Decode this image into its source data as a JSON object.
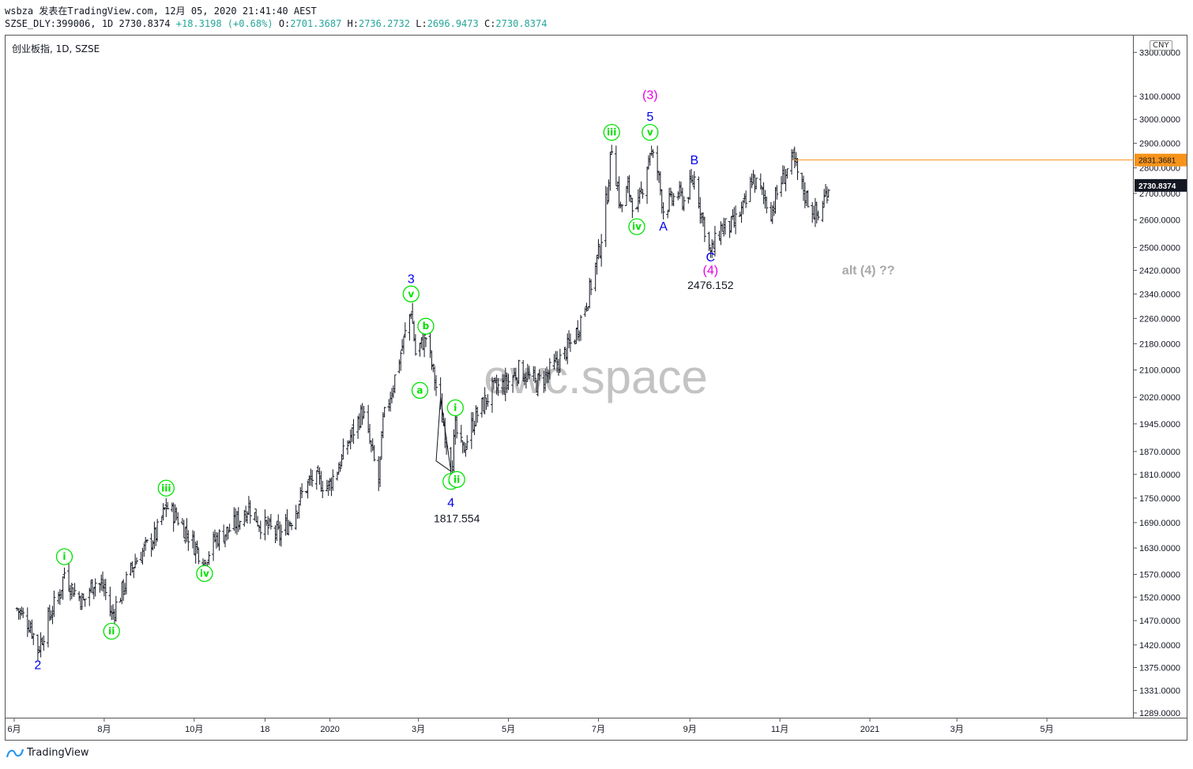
{
  "header": {
    "line1": "wsbza 发表在TradingView.com, 12月 05, 2020 21:41:40 AEST",
    "ticker": "SZSE_DLY:399006, 1D 2730.8374",
    "change": "+18.3198 (+0.68%)",
    "o_label": "O:",
    "o": "2701.3687",
    "h_label": "H:",
    "h": "2736.2732",
    "l_label": "L:",
    "l": "2696.9473",
    "c_label": "C:",
    "c": "2730.8374"
  },
  "symbol_label": "创业板指, 1D, SZSE",
  "currency": "CNY",
  "footer": {
    "brand": "TradingView"
  },
  "watermark": "ewc.space",
  "colors": {
    "up": "#131722",
    "line": "#131722",
    "orange": "#f7931a",
    "green": "#00e200",
    "blue": "#0000ee",
    "magenta": "#e600e6",
    "grey": "#a8a8a8",
    "price_bg": "#131722"
  },
  "chart_data": {
    "type": "bar",
    "title": "创业板指, 1D, SZSE",
    "y_scale": "log",
    "ylim": [
      1270,
      3380
    ],
    "y_ticks": [
      1289,
      1331,
      1375,
      1420,
      1470,
      1520,
      1570,
      1630,
      1690,
      1750,
      1810,
      1870,
      1945,
      2020,
      2100,
      2180,
      2260,
      2340,
      2420,
      2500,
      2600,
      2700,
      2800,
      2900,
      3000,
      3100,
      3300
    ],
    "y_tick_labels": [
      "1289.0000",
      "1331.0000",
      "1375.0000",
      "1420.0000",
      "1470.0000",
      "1520.0000",
      "1570.0000",
      "1630.0000",
      "1690.0000",
      "1750.0000",
      "1810.0000",
      "1870.0000",
      "1945.0000",
      "2020.0000",
      "2100.0000",
      "2180.0000",
      "2260.0000",
      "2340.0000",
      "2420.0000",
      "2500.0000",
      "2600.0000",
      "2700.0000",
      "2800.0000",
      "2900.0000",
      "3000.0000",
      "3100.0000",
      "3300.0000"
    ],
    "x_ticks": [
      {
        "label": "6月",
        "date": "2019-06-01"
      },
      {
        "label": "8月",
        "date": "2019-08-01"
      },
      {
        "label": "10月",
        "date": "2019-10-01"
      },
      {
        "label": "18",
        "date": "2019-11-18"
      },
      {
        "label": "2020",
        "date": "2020-01-01"
      },
      {
        "label": "3月",
        "date": "2020-03-01"
      },
      {
        "label": "5月",
        "date": "2020-05-01"
      },
      {
        "label": "7月",
        "date": "2020-07-01"
      },
      {
        "label": "9月",
        "date": "2020-09-01"
      },
      {
        "label": "11月",
        "date": "2020-11-01"
      },
      {
        "label": "2021",
        "date": "2021-01-01"
      },
      {
        "label": "3月",
        "date": "2021-03-01"
      },
      {
        "label": "5月",
        "date": "2021-05-01"
      }
    ],
    "price_path": [
      [
        "2019-06-03",
        1495
      ],
      [
        "2019-06-12",
        1460
      ],
      [
        "2019-06-17",
        1410
      ],
      [
        "2019-06-25",
        1480
      ],
      [
        "2019-07-02",
        1530
      ],
      [
        "2019-07-05",
        1575
      ],
      [
        "2019-07-10",
        1540
      ],
      [
        "2019-07-18",
        1510
      ],
      [
        "2019-07-25",
        1555
      ],
      [
        "2019-08-01",
        1540
      ],
      [
        "2019-08-06",
        1480
      ],
      [
        "2019-08-12",
        1525
      ],
      [
        "2019-08-22",
        1600
      ],
      [
        "2019-09-05",
        1660
      ],
      [
        "2019-09-12",
        1730
      ],
      [
        "2019-09-20",
        1700
      ],
      [
        "2019-09-27",
        1660
      ],
      [
        "2019-10-08",
        1600
      ],
      [
        "2019-10-15",
        1650
      ],
      [
        "2019-10-24",
        1670
      ],
      [
        "2019-11-01",
        1700
      ],
      [
        "2019-11-07",
        1730
      ],
      [
        "2019-11-14",
        1690
      ],
      [
        "2019-11-28",
        1660
      ],
      [
        "2019-12-06",
        1700
      ],
      [
        "2019-12-13",
        1760
      ],
      [
        "2019-12-20",
        1800
      ],
      [
        "2019-12-31",
        1780
      ],
      [
        "2020-01-08",
        1840
      ],
      [
        "2020-01-14",
        1900
      ],
      [
        "2020-01-23",
        1980
      ],
      [
        "2020-02-03",
        1790
      ],
      [
        "2020-02-06",
        1950
      ],
      [
        "2020-02-13",
        2060
      ],
      [
        "2020-02-19",
        2170
      ],
      [
        "2020-02-25",
        2290
      ],
      [
        "2020-02-28",
        2150
      ],
      [
        "2020-03-06",
        2200
      ],
      [
        "2020-03-13",
        2050
      ],
      [
        "2020-03-20",
        1900
      ],
      [
        "2020-03-23",
        1818
      ],
      [
        "2020-03-26",
        1930
      ],
      [
        "2020-03-31",
        1870
      ],
      [
        "2020-04-08",
        1960
      ],
      [
        "2020-04-20",
        2040
      ],
      [
        "2020-04-30",
        2060
      ],
      [
        "2020-05-08",
        2100
      ],
      [
        "2020-05-20",
        2060
      ],
      [
        "2020-05-28",
        2090
      ],
      [
        "2020-06-05",
        2130
      ],
      [
        "2020-06-15",
        2200
      ],
      [
        "2020-06-24",
        2330
      ],
      [
        "2020-07-02",
        2500
      ],
      [
        "2020-07-07",
        2700
      ],
      [
        "2020-07-10",
        2890
      ],
      [
        "2020-07-16",
        2640
      ],
      [
        "2020-07-21",
        2720
      ],
      [
        "2020-07-27",
        2620
      ],
      [
        "2020-08-05",
        2870
      ],
      [
        "2020-08-10",
        2790
      ],
      [
        "2020-08-14",
        2640
      ],
      [
        "2020-08-24",
        2700
      ],
      [
        "2020-08-28",
        2670
      ],
      [
        "2020-09-04",
        2760
      ],
      [
        "2020-09-09",
        2620
      ],
      [
        "2020-09-15",
        2476
      ],
      [
        "2020-09-22",
        2570
      ],
      [
        "2020-09-30",
        2580
      ],
      [
        "2020-10-09",
        2660
      ],
      [
        "2020-10-13",
        2760
      ],
      [
        "2020-10-20",
        2700
      ],
      [
        "2020-10-26",
        2630
      ],
      [
        "2020-11-02",
        2750
      ],
      [
        "2020-11-10",
        2831
      ],
      [
        "2020-11-16",
        2720
      ],
      [
        "2020-11-23",
        2640
      ],
      [
        "2020-11-27",
        2610
      ],
      [
        "2020-12-04",
        2730
      ]
    ],
    "resistance_level": 2831.3681,
    "last_price": 2730.8374,
    "price_labels": {
      "resistance": "2831.3681",
      "last": "2730.8374"
    },
    "annotations": [
      {
        "text": "2",
        "date": "2019-06-17",
        "price": 1380,
        "style": "blue"
      },
      {
        "text": "i",
        "date": "2019-07-05",
        "price": 1610,
        "style": "green-circle"
      },
      {
        "text": "ii",
        "date": "2019-08-06",
        "price": 1448,
        "style": "green-circle"
      },
      {
        "text": "iii",
        "date": "2019-09-12",
        "price": 1775,
        "style": "green-circle"
      },
      {
        "text": "iv",
        "date": "2019-10-08",
        "price": 1572,
        "style": "green-circle"
      },
      {
        "text": "3",
        "date": "2020-02-25",
        "price": 2390,
        "style": "blue"
      },
      {
        "text": "v",
        "date": "2020-02-25",
        "price": 2340,
        "style": "green-circle"
      },
      {
        "text": "b",
        "date": "2020-03-06",
        "price": 2235,
        "style": "green-circle"
      },
      {
        "text": "a",
        "date": "2020-03-02",
        "price": 2040,
        "style": "green-circle"
      },
      {
        "text": "i",
        "date": "2020-03-26",
        "price": 1990,
        "style": "green-circle"
      },
      {
        "text": "c",
        "date": "2020-03-23",
        "price": 1792,
        "style": "green-circle"
      },
      {
        "text": "ii",
        "date": "2020-03-27",
        "price": 1797,
        "style": "green-circle"
      },
      {
        "text": "4",
        "date": "2020-03-23",
        "price": 1738,
        "style": "blue"
      },
      {
        "text": "1817.554",
        "date": "2020-03-27",
        "price": 1700,
        "style": "dark"
      },
      {
        "text": "(3)",
        "date": "2020-08-05",
        "price": 3105,
        "style": "magenta"
      },
      {
        "text": "5",
        "date": "2020-08-05",
        "price": 3010,
        "style": "blue"
      },
      {
        "text": "iii",
        "date": "2020-07-10",
        "price": 2945,
        "style": "green-circle"
      },
      {
        "text": "v",
        "date": "2020-08-05",
        "price": 2945,
        "style": "green-circle"
      },
      {
        "text": "iv",
        "date": "2020-07-27",
        "price": 2575,
        "style": "green-circle"
      },
      {
        "text": "A",
        "date": "2020-08-14",
        "price": 2575,
        "style": "blue"
      },
      {
        "text": "B",
        "date": "2020-09-04",
        "price": 2830,
        "style": "blue"
      },
      {
        "text": "C",
        "date": "2020-09-15",
        "price": 2465,
        "style": "blue"
      },
      {
        "text": "(4)",
        "date": "2020-09-15",
        "price": 2420,
        "style": "magenta"
      },
      {
        "text": "2476.152",
        "date": "2020-09-15",
        "price": 2370,
        "style": "dark"
      },
      {
        "text": "alt (4) ??",
        "date": "2020-12-31",
        "price": 2420,
        "style": "grey"
      }
    ]
  }
}
